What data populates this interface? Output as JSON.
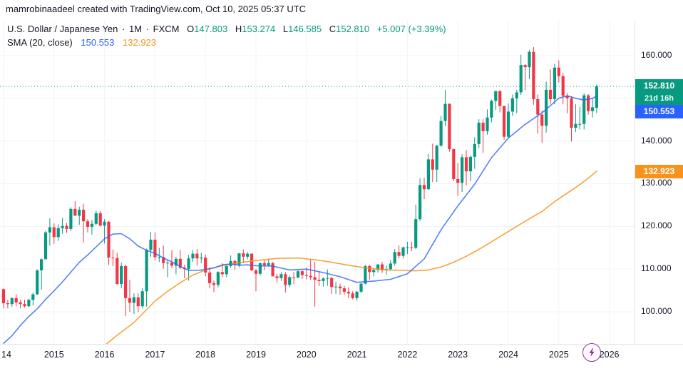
{
  "header": {
    "credit": "mamrobinaadeel created with TradingView.com, Oct 10, 2025 05:37 UTC"
  },
  "legend": {
    "symbol": "U.S. Dollar / Japanese Yen",
    "separator": "·",
    "interval": "1M",
    "exchange": "FXCM",
    "ohlc": [
      {
        "label": "O",
        "value": "147.803"
      },
      {
        "label": "H",
        "value": "153.274"
      },
      {
        "label": "L",
        "value": "146.585"
      },
      {
        "label": "C",
        "value": "152.810"
      }
    ],
    "change": "+5.007 (+3.39%)",
    "indicator": {
      "name": "SMA (20, close)",
      "fast_value": "150.553",
      "slow_value": "132.923"
    }
  },
  "badges": {
    "last_price": "152.810",
    "countdown": "21d 16h",
    "sma_fast": "150.553",
    "sma_slow": "132.923"
  },
  "axis": {
    "y_axis": [
      {
        "label": "160.000",
        "price": 160
      },
      {
        "label": "150.000",
        "price": 150
      },
      {
        "label": "140.000",
        "price": 140
      },
      {
        "label": "130.000",
        "price": 130
      },
      {
        "label": "120.000",
        "price": 120
      },
      {
        "label": "110.000",
        "price": 110
      },
      {
        "label": "100.000",
        "price": 100
      }
    ],
    "x_axis": [
      {
        "label": "14",
        "m": 0
      },
      {
        "label": "2015",
        "m": 12
      },
      {
        "label": "2016",
        "m": 24
      },
      {
        "label": "2017",
        "m": 36
      },
      {
        "label": "2018",
        "m": 48
      },
      {
        "label": "2019",
        "m": 60
      },
      {
        "label": "2020",
        "m": 72
      },
      {
        "label": "2021",
        "m": 84
      },
      {
        "label": "2022",
        "m": 96
      },
      {
        "label": "2023",
        "m": 108
      },
      {
        "label": "2024",
        "m": 120
      },
      {
        "label": "2025",
        "m": 132
      },
      {
        "label": "2026",
        "m": 144
      }
    ]
  },
  "colors": {
    "up": "#089981",
    "down": "#F23645",
    "sma_fast": "#2962FF",
    "sma_slow": "#F7931A",
    "last_line": "#089981",
    "grid": "#f0f3fa",
    "badge_last": "#089981",
    "badge_fast": "#2962FF",
    "badge_slow": "#F7931A",
    "bolt": "#9C27B0",
    "text": "#131722"
  },
  "chart_data": {
    "type": "candlestick",
    "title": "U.S. Dollar / Japanese Yen, 1M, FXCM",
    "start": "2014-01",
    "interval_months": 1,
    "last_price": 152.81,
    "sma_fast_last": 150.553,
    "sma_slow_last": 132.923,
    "ylim": [
      92.5,
      168.4
    ],
    "price_gridlines": [
      100,
      110,
      120,
      130,
      140,
      150,
      160
    ],
    "year_grid_months": [
      0,
      12,
      24,
      36,
      48,
      60,
      72,
      84,
      96,
      108,
      120,
      132,
      144
    ],
    "ohlc": [
      [
        105.3,
        105.5,
        100.8,
        102.0
      ],
      [
        102.0,
        102.8,
        100.8,
        101.8
      ],
      [
        101.8,
        103.4,
        101.2,
        103.2
      ],
      [
        103.2,
        104.1,
        101.3,
        102.2
      ],
      [
        102.2,
        102.8,
        100.8,
        101.8
      ],
      [
        101.8,
        102.8,
        101.0,
        101.3
      ],
      [
        101.3,
        103.1,
        101.1,
        102.8
      ],
      [
        102.8,
        104.5,
        101.5,
        104.1
      ],
      [
        104.1,
        109.9,
        103.9,
        109.7
      ],
      [
        109.7,
        112.5,
        105.2,
        112.3
      ],
      [
        112.3,
        119.0,
        112.3,
        118.6
      ],
      [
        118.6,
        121.9,
        115.5,
        119.8
      ],
      [
        119.8,
        120.7,
        115.9,
        117.5
      ],
      [
        117.5,
        120.5,
        116.6,
        119.6
      ],
      [
        119.6,
        122.0,
        118.3,
        120.1
      ],
      [
        120.1,
        120.8,
        118.5,
        119.4
      ],
      [
        119.4,
        124.5,
        118.9,
        124.1
      ],
      [
        124.1,
        125.9,
        122.5,
        122.5
      ],
      [
        122.5,
        124.6,
        120.4,
        123.9
      ],
      [
        123.9,
        125.3,
        116.2,
        121.2
      ],
      [
        121.2,
        121.7,
        118.6,
        119.9
      ],
      [
        119.9,
        121.5,
        118.1,
        120.6
      ],
      [
        120.6,
        123.7,
        120.3,
        123.1
      ],
      [
        123.1,
        123.6,
        120.0,
        120.2
      ],
      [
        120.2,
        121.7,
        116.0,
        121.1
      ],
      [
        121.1,
        121.2,
        111.0,
        112.7
      ],
      [
        112.7,
        114.6,
        110.7,
        112.6
      ],
      [
        112.6,
        113.8,
        106.3,
        106.5
      ],
      [
        106.5,
        111.5,
        105.5,
        110.7
      ],
      [
        110.7,
        111.0,
        99.0,
        103.2
      ],
      [
        103.2,
        107.5,
        100.0,
        102.1
      ],
      [
        102.1,
        104.3,
        99.5,
        103.4
      ],
      [
        103.4,
        104.3,
        99.9,
        101.3
      ],
      [
        101.3,
        105.5,
        100.8,
        104.8
      ],
      [
        104.8,
        114.8,
        101.2,
        114.5
      ],
      [
        114.5,
        118.7,
        112.9,
        116.9
      ],
      [
        116.9,
        118.6,
        112.0,
        112.8
      ],
      [
        112.8,
        115.0,
        111.7,
        112.8
      ],
      [
        112.8,
        115.5,
        110.1,
        111.4
      ],
      [
        111.4,
        112.2,
        108.1,
        111.5
      ],
      [
        111.5,
        114.4,
        110.2,
        110.8
      ],
      [
        110.8,
        112.9,
        108.8,
        112.4
      ],
      [
        112.4,
        114.5,
        110.0,
        110.3
      ],
      [
        110.3,
        111.0,
        107.9,
        110.0
      ],
      [
        110.0,
        113.3,
        107.3,
        112.5
      ],
      [
        112.5,
        114.5,
        111.7,
        113.6
      ],
      [
        113.6,
        114.7,
        110.8,
        112.5
      ],
      [
        112.5,
        113.8,
        111.4,
        112.7
      ],
      [
        112.7,
        113.4,
        108.3,
        109.2
      ],
      [
        109.2,
        110.5,
        105.5,
        106.7
      ],
      [
        106.7,
        107.3,
        104.6,
        106.3
      ],
      [
        106.3,
        109.5,
        105.7,
        109.3
      ],
      [
        109.3,
        111.4,
        108.1,
        108.8
      ],
      [
        108.8,
        110.9,
        108.1,
        110.7
      ],
      [
        110.7,
        113.2,
        110.3,
        111.9
      ],
      [
        111.9,
        112.2,
        109.8,
        111.0
      ],
      [
        111.0,
        113.7,
        110.4,
        113.7
      ],
      [
        113.7,
        114.6,
        111.4,
        112.9
      ],
      [
        112.9,
        114.0,
        112.3,
        113.6
      ],
      [
        113.6,
        113.7,
        109.6,
        109.7
      ],
      [
        109.7,
        110.0,
        104.8,
        108.9
      ],
      [
        108.9,
        111.5,
        108.5,
        111.4
      ],
      [
        111.4,
        112.1,
        109.7,
        110.9
      ],
      [
        110.9,
        112.4,
        110.8,
        111.4
      ],
      [
        111.4,
        111.7,
        108.3,
        108.3
      ],
      [
        108.3,
        108.9,
        106.8,
        107.9
      ],
      [
        107.9,
        109.3,
        107.2,
        108.8
      ],
      [
        108.8,
        109.3,
        104.5,
        106.3
      ],
      [
        106.3,
        108.5,
        105.7,
        108.1
      ],
      [
        108.1,
        109.3,
        106.5,
        108.0
      ],
      [
        108.0,
        109.7,
        107.9,
        109.5
      ],
      [
        109.5,
        109.7,
        107.7,
        108.6
      ],
      [
        108.6,
        110.3,
        107.6,
        108.4
      ],
      [
        108.4,
        112.2,
        107.5,
        108.1
      ],
      [
        108.1,
        111.7,
        101.2,
        107.5
      ],
      [
        107.5,
        109.4,
        106.0,
        107.2
      ],
      [
        107.2,
        108.1,
        105.9,
        107.8
      ],
      [
        107.8,
        109.9,
        106.1,
        107.9
      ],
      [
        107.9,
        108.2,
        104.2,
        105.8
      ],
      [
        105.8,
        107.0,
        104.2,
        105.9
      ],
      [
        105.9,
        106.6,
        104.0,
        105.5
      ],
      [
        105.5,
        106.1,
        104.0,
        104.7
      ],
      [
        104.7,
        105.7,
        103.2,
        104.3
      ],
      [
        104.3,
        104.8,
        102.9,
        103.2
      ],
      [
        103.2,
        104.9,
        102.6,
        104.7
      ],
      [
        104.7,
        106.7,
        104.4,
        106.6
      ],
      [
        106.6,
        111.0,
        106.4,
        110.7
      ],
      [
        110.7,
        111.0,
        107.5,
        109.3
      ],
      [
        109.3,
        110.3,
        108.3,
        109.8
      ],
      [
        109.8,
        111.1,
        109.2,
        111.1
      ],
      [
        111.1,
        111.7,
        109.1,
        109.7
      ],
      [
        109.7,
        110.8,
        108.7,
        110.0
      ],
      [
        110.0,
        112.1,
        109.6,
        111.3
      ],
      [
        111.3,
        114.7,
        110.8,
        114.0
      ],
      [
        114.0,
        115.5,
        112.5,
        113.1
      ],
      [
        113.1,
        115.3,
        112.5,
        115.1
      ],
      [
        115.1,
        116.4,
        113.5,
        115.1
      ],
      [
        115.1,
        116.4,
        114.2,
        115.0
      ],
      [
        115.0,
        125.1,
        114.7,
        121.7
      ],
      [
        121.7,
        131.3,
        121.3,
        129.7
      ],
      [
        129.7,
        131.4,
        126.4,
        128.7
      ],
      [
        128.7,
        137.0,
        128.6,
        135.7
      ],
      [
        135.7,
        139.4,
        130.4,
        133.3
      ],
      [
        133.3,
        139.1,
        130.4,
        138.9
      ],
      [
        138.9,
        145.9,
        138.7,
        144.7
      ],
      [
        144.7,
        152.0,
        143.5,
        148.7
      ],
      [
        148.7,
        148.8,
        137.5,
        138.1
      ],
      [
        138.1,
        138.2,
        130.6,
        131.1
      ],
      [
        131.1,
        134.8,
        127.2,
        130.2
      ],
      [
        130.2,
        136.9,
        128.1,
        136.2
      ],
      [
        136.2,
        137.9,
        129.6,
        132.9
      ],
      [
        132.9,
        136.6,
        130.6,
        136.3
      ],
      [
        136.3,
        140.9,
        133.5,
        139.3
      ],
      [
        139.3,
        145.1,
        138.4,
        144.3
      ],
      [
        144.3,
        145.1,
        137.2,
        142.3
      ],
      [
        142.3,
        147.4,
        141.5,
        145.5
      ],
      [
        145.5,
        149.7,
        144.4,
        149.4
      ],
      [
        149.4,
        151.7,
        147.3,
        151.7
      ],
      [
        151.7,
        151.9,
        146.7,
        148.2
      ],
      [
        148.2,
        148.3,
        140.3,
        141.0
      ],
      [
        141.0,
        148.8,
        140.8,
        146.9
      ],
      [
        146.9,
        150.9,
        145.9,
        150.0
      ],
      [
        150.0,
        152.0,
        146.5,
        151.4
      ],
      [
        151.4,
        160.2,
        150.8,
        157.8
      ],
      [
        157.8,
        158.0,
        151.9,
        157.3
      ],
      [
        157.3,
        161.3,
        154.5,
        160.9
      ],
      [
        160.9,
        162.0,
        148.5,
        149.8
      ],
      [
        149.8,
        150.9,
        141.7,
        146.2
      ],
      [
        146.2,
        147.2,
        139.6,
        143.6
      ],
      [
        143.6,
        153.9,
        142.0,
        152.0
      ],
      [
        152.0,
        156.8,
        148.7,
        149.8
      ],
      [
        149.8,
        158.1,
        148.6,
        157.2
      ],
      [
        157.2,
        158.9,
        153.7,
        155.2
      ],
      [
        155.2,
        155.9,
        148.6,
        150.6
      ],
      [
        150.6,
        151.3,
        146.5,
        150.0
      ],
      [
        150.0,
        150.5,
        139.9,
        143.1
      ],
      [
        143.1,
        148.6,
        142.1,
        144.0
      ],
      [
        144.0,
        148.0,
        142.7,
        144.0
      ],
      [
        144.0,
        151.2,
        142.7,
        150.7
      ],
      [
        150.7,
        151.0,
        146.2,
        147.0
      ],
      [
        147.0,
        149.9,
        145.5,
        147.9
      ],
      [
        147.8,
        153.27,
        146.59,
        152.81
      ]
    ],
    "sma_fast": {
      "name": "SMA 20 close",
      "points": [
        [
          0,
          92.6
        ],
        [
          2,
          94.4
        ],
        [
          4,
          96.8
        ],
        [
          6,
          98.9
        ],
        [
          8,
          100.7
        ],
        [
          10,
          102.9
        ],
        [
          12,
          104.9
        ],
        [
          14,
          107.0
        ],
        [
          16,
          109.3
        ],
        [
          18,
          111.6
        ],
        [
          20,
          113.3
        ],
        [
          22,
          115.2
        ],
        [
          24,
          117.1
        ],
        [
          26,
          118.2
        ],
        [
          28,
          118.3
        ],
        [
          30,
          117.1
        ],
        [
          32,
          115.4
        ],
        [
          34,
          114.4
        ],
        [
          36,
          113.7
        ],
        [
          38,
          112.6
        ],
        [
          40,
          111.7
        ],
        [
          42,
          110.6
        ],
        [
          44,
          109.7
        ],
        [
          46,
          109.7
        ],
        [
          48,
          109.9
        ],
        [
          50,
          110.3
        ],
        [
          52,
          111.0
        ],
        [
          54,
          111.2
        ],
        [
          56,
          110.9
        ],
        [
          58,
          111.0
        ],
        [
          60,
          110.8
        ],
        [
          64,
          110.7
        ],
        [
          68,
          109.8
        ],
        [
          72,
          110.0
        ],
        [
          76,
          109.2
        ],
        [
          80,
          108.2
        ],
        [
          84,
          106.9
        ],
        [
          88,
          107.2
        ],
        [
          92,
          107.6
        ],
        [
          96,
          108.9
        ],
        [
          100,
          112.4
        ],
        [
          104,
          119.2
        ],
        [
          108,
          124.8
        ],
        [
          112,
          129.9
        ],
        [
          116,
          136.1
        ],
        [
          120,
          140.7
        ],
        [
          124,
          143.9
        ],
        [
          128,
          146.6
        ],
        [
          132,
          150.0
        ],
        [
          134,
          150.6
        ],
        [
          136,
          150.0
        ],
        [
          138,
          149.6
        ],
        [
          140,
          150.0
        ],
        [
          141,
          150.553
        ]
      ]
    },
    "sma_slow": {
      "name": "SMA slow",
      "points": [
        [
          23,
          91.3
        ],
        [
          27,
          94.5
        ],
        [
          31,
          97.5
        ],
        [
          34,
          100.5
        ],
        [
          36,
          102.5
        ],
        [
          39,
          104.8
        ],
        [
          42,
          106.8
        ],
        [
          45,
          108.6
        ],
        [
          48,
          109.8
        ],
        [
          52,
          110.8
        ],
        [
          56,
          111.5
        ],
        [
          60,
          112.0
        ],
        [
          65,
          112.5
        ],
        [
          70,
          112.6
        ],
        [
          74,
          112.2
        ],
        [
          78,
          111.6
        ],
        [
          82,
          110.9
        ],
        [
          86,
          110.3
        ],
        [
          90,
          109.9
        ],
        [
          94,
          109.7
        ],
        [
          98,
          109.6
        ],
        [
          101,
          109.8
        ],
        [
          104,
          110.5
        ],
        [
          107,
          111.6
        ],
        [
          110,
          113.0
        ],
        [
          113,
          114.6
        ],
        [
          116,
          116.4
        ],
        [
          119,
          118.2
        ],
        [
          122,
          120.0
        ],
        [
          125,
          121.8
        ],
        [
          128,
          123.5
        ],
        [
          131,
          125.8
        ],
        [
          134,
          127.8
        ],
        [
          137,
          129.8
        ],
        [
          139,
          131.3
        ],
        [
          141,
          132.923
        ]
      ]
    }
  }
}
